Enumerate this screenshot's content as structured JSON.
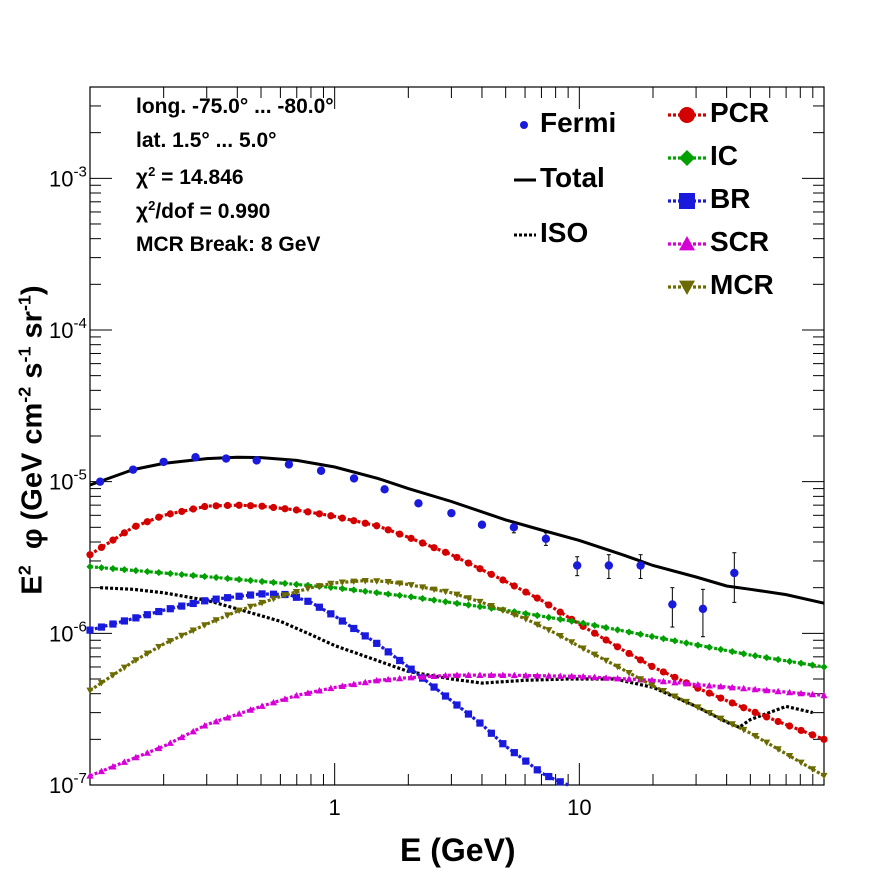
{
  "chart_data": {
    "type": "line",
    "xscale": "log",
    "yscale": "log",
    "xlim": [
      0.1,
      100
    ],
    "ylim": [
      1e-07,
      0.004
    ],
    "xlabel": "E (GeV)",
    "ylabel": "E2 φ (GeV cm-2 s-1 sr-1)",
    "xticks": [
      {
        "v": 1,
        "label": "1"
      },
      {
        "v": 10,
        "label": "10"
      }
    ],
    "yticks": [
      {
        "v": 1e-07,
        "base": "10",
        "exp": "-7"
      },
      {
        "v": 1e-06,
        "base": "10",
        "exp": "-6"
      },
      {
        "v": 1e-05,
        "base": "10",
        "exp": "-5"
      },
      {
        "v": 0.0001,
        "base": "10",
        "exp": "-4"
      },
      {
        "v": 0.001,
        "base": "10",
        "exp": "-3"
      }
    ],
    "info": {
      "longitude": "long. -75.0° ... -80.0°",
      "latitude": "lat. 1.5° ... 5.0°",
      "chi2_label": "χ",
      "chi2_value": " = 14.846",
      "chi2dof_label": "χ",
      "chi2dof_value": "/dof = 0.990",
      "mcr_break": "MCR Break:  8 GeV"
    },
    "fermi": {
      "name": "Fermi",
      "color": "#1a1adc",
      "x": [
        0.11,
        0.15,
        0.2,
        0.27,
        0.36,
        0.48,
        0.65,
        0.88,
        1.2,
        1.6,
        2.2,
        3.0,
        4.0,
        5.4,
        7.3,
        9.8,
        13.2,
        17.8,
        24,
        32,
        43,
        58,
        78
      ],
      "y": [
        1e-05,
        1.2e-05,
        1.35e-05,
        1.45e-05,
        1.42e-05,
        1.38e-05,
        1.3e-05,
        1.18e-05,
        1.05e-05,
        8.9e-06,
        7.2e-06,
        6.2e-06,
        5.2e-06,
        5e-06,
        4.2e-06,
        2.8e-06,
        2.8e-06,
        2.8e-06,
        1.55e-06,
        1.45e-06,
        2.5e-06,
        null,
        null
      ],
      "yerr_low": [
        0,
        0,
        0,
        0,
        0,
        0,
        0,
        0,
        0,
        0,
        0,
        0,
        0,
        4e-07,
        4e-07,
        4e-07,
        5e-07,
        5e-07,
        4.5e-07,
        5e-07,
        9e-07,
        null,
        null
      ],
      "yerr_high": [
        0,
        0,
        0,
        0,
        0,
        0,
        0,
        0,
        0,
        0,
        0,
        0,
        0,
        4e-07,
        4e-07,
        4e-07,
        5e-07,
        5e-07,
        4.5e-07,
        5e-07,
        9e-07,
        null,
        null
      ]
    },
    "series": [
      {
        "name": "Total",
        "color": "#000000",
        "style": "solid",
        "marker": "none",
        "x": [
          0.1,
          0.15,
          0.2,
          0.3,
          0.4,
          0.5,
          0.7,
          1,
          1.5,
          2,
          3,
          5,
          7,
          10,
          15,
          20,
          30,
          40,
          50,
          70,
          100
        ],
        "y": [
          9.5e-06,
          1.2e-05,
          1.32e-05,
          1.42e-05,
          1.45e-05,
          1.44e-05,
          1.38e-05,
          1.25e-05,
          1.05e-05,
          9e-06,
          7.4e-06,
          5.6e-06,
          4.8e-06,
          4.1e-06,
          3.3e-06,
          2.8e-06,
          2.35e-06,
          2.05e-06,
          1.95e-06,
          1.8e-06,
          1.58e-06
        ]
      },
      {
        "name": "ISO",
        "color": "#000000",
        "style": "dotted",
        "marker": "none",
        "x": [
          0.11,
          0.15,
          0.2,
          0.3,
          0.4,
          0.6,
          0.8,
          1,
          1.5,
          2,
          3,
          4,
          6,
          9,
          14,
          20,
          30,
          40,
          45,
          50,
          70,
          90
        ],
        "y": [
          2e-06,
          1.95e-06,
          1.85e-06,
          1.65e-06,
          1.45e-06,
          1.2e-06,
          9.8e-07,
          8.3e-07,
          6.6e-07,
          5.6e-07,
          5e-07,
          4.7e-07,
          4.9e-07,
          5e-07,
          5e-07,
          4.4e-07,
          3.3e-07,
          2.6e-07,
          2.4e-07,
          2.7e-07,
          3.3e-07,
          3e-07
        ]
      },
      {
        "name": "PCR",
        "color": "#d40000",
        "style": "dotted",
        "marker": "circle",
        "x": [
          0.1,
          0.15,
          0.2,
          0.3,
          0.4,
          0.5,
          0.7,
          1,
          1.5,
          2,
          3,
          5,
          7,
          10,
          15,
          20,
          30,
          40,
          50,
          70,
          100
        ],
        "y": [
          3.3e-06,
          5e-06,
          6e-06,
          6.9e-06,
          7e-06,
          6.9e-06,
          6.5e-06,
          5.9e-06,
          5.1e-06,
          4.3e-06,
          3.3e-06,
          2.2e-06,
          1.65e-06,
          1.15e-06,
          7.8e-07,
          6e-07,
          4.4e-07,
          3.6e-07,
          3.1e-07,
          2.5e-07,
          2e-07
        ]
      },
      {
        "name": "IC",
        "color": "#00a000",
        "style": "dotted",
        "marker": "diamond",
        "x": [
          0.1,
          0.2,
          0.5,
          1,
          2,
          5,
          10,
          20,
          50,
          100
        ],
        "y": [
          2.75e-06,
          2.5e-06,
          2.2e-06,
          2e-06,
          1.75e-06,
          1.42e-06,
          1.18e-06,
          9.5e-07,
          7.2e-07,
          6e-07
        ]
      },
      {
        "name": "BR",
        "color": "#1a1adc",
        "style": "dotted",
        "marker": "square",
        "x": [
          0.1,
          0.15,
          0.2,
          0.3,
          0.4,
          0.5,
          0.65,
          0.8,
          1,
          1.5,
          2,
          3,
          4,
          5,
          6,
          7,
          8,
          9
        ],
        "y": [
          1.05e-06,
          1.25e-06,
          1.42e-06,
          1.65e-06,
          1.75e-06,
          1.82e-06,
          1.8e-06,
          1.6e-06,
          1.3e-06,
          8.5e-07,
          6e-07,
          3.6e-07,
          2.5e-07,
          1.8e-07,
          1.45e-07,
          1.2e-07,
          1.08e-07,
          1e-07
        ]
      },
      {
        "name": "SCR",
        "color": "#d600d6",
        "style": "dotted",
        "marker": "triangle",
        "x": [
          0.1,
          0.2,
          0.3,
          0.5,
          0.7,
          1,
          1.5,
          2,
          3,
          5,
          10,
          20,
          30,
          50,
          100
        ],
        "y": [
          1.15e-07,
          1.8e-07,
          2.5e-07,
          3.3e-07,
          3.9e-07,
          4.4e-07,
          4.9e-07,
          5.1e-07,
          5.3e-07,
          5.3e-07,
          5.2e-07,
          4.9e-07,
          4.6e-07,
          4.3e-07,
          3.9e-07
        ]
      },
      {
        "name": "MCR",
        "color": "#6b6b00",
        "style": "dotted",
        "marker": "triangle-down",
        "x": [
          0.1,
          0.15,
          0.2,
          0.3,
          0.4,
          0.6,
          0.8,
          1,
          1.3,
          1.6,
          2,
          3,
          4,
          6,
          8,
          10,
          15,
          20,
          30,
          50,
          100
        ],
        "y": [
          4.2e-07,
          6.5e-07,
          8.5e-07,
          1.15e-06,
          1.4e-06,
          1.75e-06,
          2e-06,
          2.15e-06,
          2.22e-06,
          2.2e-06,
          2.1e-06,
          1.85e-06,
          1.6e-06,
          1.25e-06,
          1e-06,
          8.2e-07,
          5.8e-07,
          4.5e-07,
          3.3e-07,
          2.2e-07,
          1.15e-07
        ]
      }
    ],
    "legend": {
      "left": [
        {
          "label": "Fermi",
          "symbol": "point",
          "color": "#1a1adc"
        },
        {
          "label": "Total",
          "symbol": "solid",
          "color": "#000000"
        },
        {
          "label": "ISO",
          "symbol": "dotted",
          "color": "#000000"
        }
      ],
      "right": [
        {
          "label": "PCR",
          "symbol": "circle",
          "color": "#d40000"
        },
        {
          "label": "IC",
          "symbol": "diamond",
          "color": "#00a000"
        },
        {
          "label": "BR",
          "symbol": "square",
          "color": "#1a1adc"
        },
        {
          "label": "SCR",
          "symbol": "triangle",
          "color": "#d600d6"
        },
        {
          "label": "MCR",
          "symbol": "triangle-down",
          "color": "#6b6b00"
        }
      ]
    }
  }
}
